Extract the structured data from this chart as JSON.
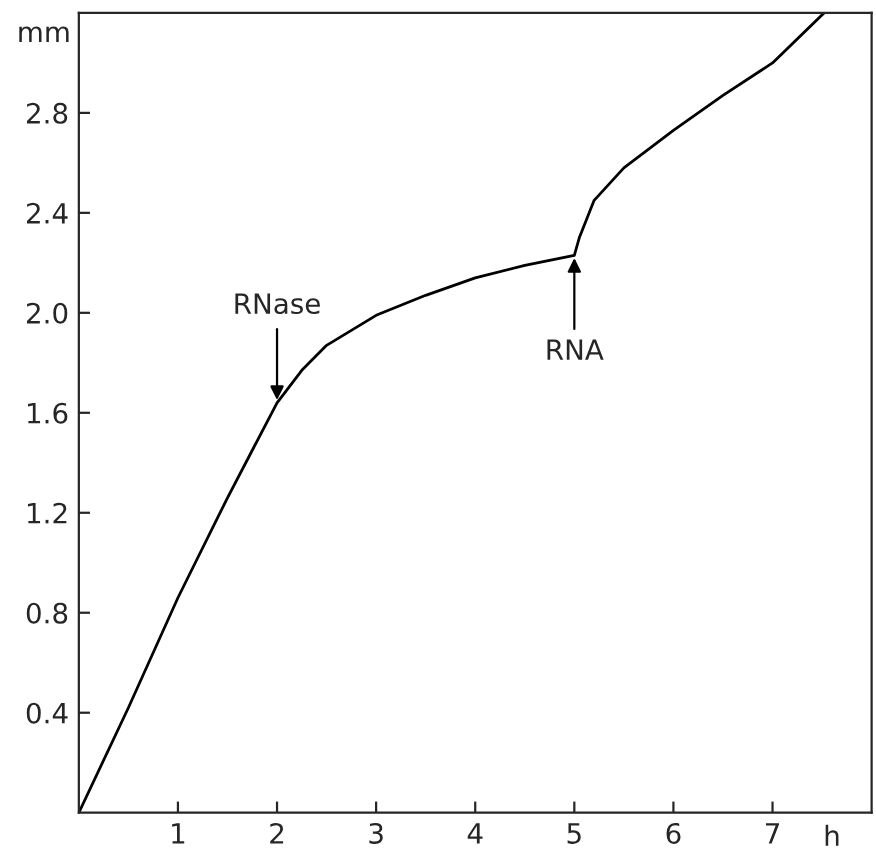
{
  "chart_data": {
    "type": "line",
    "xlabel": "h",
    "ylabel": "mm",
    "x": [
      0,
      0.5,
      1,
      1.5,
      2,
      2.25,
      2.5,
      3,
      3.5,
      4,
      4.5,
      5,
      5.05,
      5.2,
      5.5,
      6,
      6.5,
      7,
      7.52
    ],
    "series": [
      {
        "color": "#000000",
        "values": [
          0,
          0.42,
          0.86,
          1.26,
          1.64,
          1.77,
          1.87,
          1.99,
          2.07,
          2.14,
          2.19,
          2.23,
          2.3,
          2.45,
          2.58,
          2.73,
          2.87,
          3.0,
          3.2
        ]
      }
    ],
    "xlim": [
      0,
      8
    ],
    "ylim": [
      0,
      3.2
    ],
    "xticks": [
      1,
      2,
      3,
      4,
      5,
      6,
      7
    ],
    "yticks": [
      0.4,
      0.8,
      1.2,
      1.6,
      {
        "value": 2,
        "label": "2.0"
      },
      2.4,
      2.8
    ],
    "annotations": [
      {
        "text": "RNase",
        "x": 2,
        "y": 1.64
      },
      {
        "text": "RNA",
        "x": 5,
        "y": 2.23
      }
    ],
    "grid": false,
    "marker": "none",
    "line_style": "solid"
  }
}
